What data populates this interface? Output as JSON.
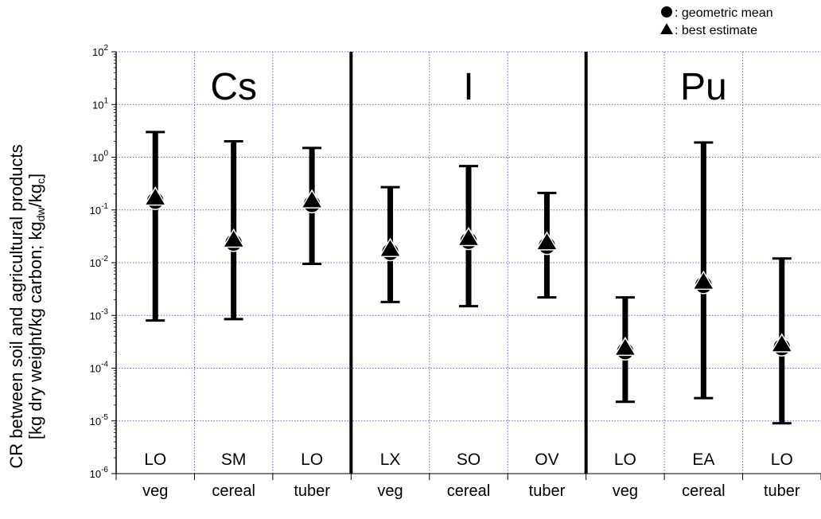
{
  "chart_data": {
    "type": "scatter",
    "title": "",
    "ylabel_line1": "CR between soil and agricultural products",
    "ylabel_line2_prefix": "[kg dry weight/kg carbon; kg",
    "ylabel_sub1": "dw",
    "ylabel_mid": "/kg",
    "ylabel_sub2": "c",
    "ylabel_suffix": "]",
    "yscale": "log",
    "ylim": [
      1e-06,
      100
    ],
    "yticks": [
      {
        "base": "10",
        "exp": "2"
      },
      {
        "base": "10",
        "exp": "1"
      },
      {
        "base": "10",
        "exp": "0"
      },
      {
        "base": "10",
        "exp": "-1"
      },
      {
        "base": "10",
        "exp": "-2"
      },
      {
        "base": "10",
        "exp": "-3"
      },
      {
        "base": "10",
        "exp": "-4"
      },
      {
        "base": "10",
        "exp": "-5"
      },
      {
        "base": "10",
        "exp": "-6"
      }
    ],
    "ytick_values": [
      100,
      10,
      1,
      0.1,
      0.01,
      0.001,
      0.0001,
      1e-05,
      1e-06
    ],
    "grid": true,
    "groups": [
      {
        "element": "Cs",
        "items": [
          {
            "category": "veg",
            "code": "LO",
            "geometric_mean": 0.15,
            "best_estimate": 0.17,
            "low": 0.0008,
            "high": 3.0
          },
          {
            "category": "cereal",
            "code": "SM",
            "geometric_mean": 0.024,
            "best_estimate": 0.027,
            "low": 0.00085,
            "high": 2.0
          },
          {
            "category": "tuber",
            "code": "LO",
            "geometric_mean": 0.13,
            "best_estimate": 0.15,
            "low": 0.0095,
            "high": 1.5
          }
        ]
      },
      {
        "element": "I",
        "items": [
          {
            "category": "veg",
            "code": "LX",
            "geometric_mean": 0.016,
            "best_estimate": 0.018,
            "low": 0.0018,
            "high": 0.27
          },
          {
            "category": "cereal",
            "code": "SO",
            "geometric_mean": 0.026,
            "best_estimate": 0.029,
            "low": 0.0015,
            "high": 0.68
          },
          {
            "category": "tuber",
            "code": "OV",
            "geometric_mean": 0.021,
            "best_estimate": 0.024,
            "low": 0.0022,
            "high": 0.21
          }
        ]
      },
      {
        "element": "Pu",
        "items": [
          {
            "category": "veg",
            "code": "LO",
            "geometric_mean": 0.00021,
            "best_estimate": 0.00024,
            "low": 2.3e-05,
            "high": 0.0022
          },
          {
            "category": "cereal",
            "code": "EA",
            "geometric_mean": 0.0038,
            "best_estimate": 0.0043,
            "low": 2.7e-05,
            "high": 1.9
          },
          {
            "category": "tuber",
            "code": "LO",
            "geometric_mean": 0.00025,
            "best_estimate": 0.00028,
            "low": 9e-06,
            "high": 0.012
          }
        ]
      }
    ],
    "legend": {
      "placement": "top-right",
      "entries": [
        {
          "marker": "circle",
          "label": ": geometric mean"
        },
        {
          "marker": "triangle",
          "label": ": best estimate"
        }
      ]
    }
  }
}
